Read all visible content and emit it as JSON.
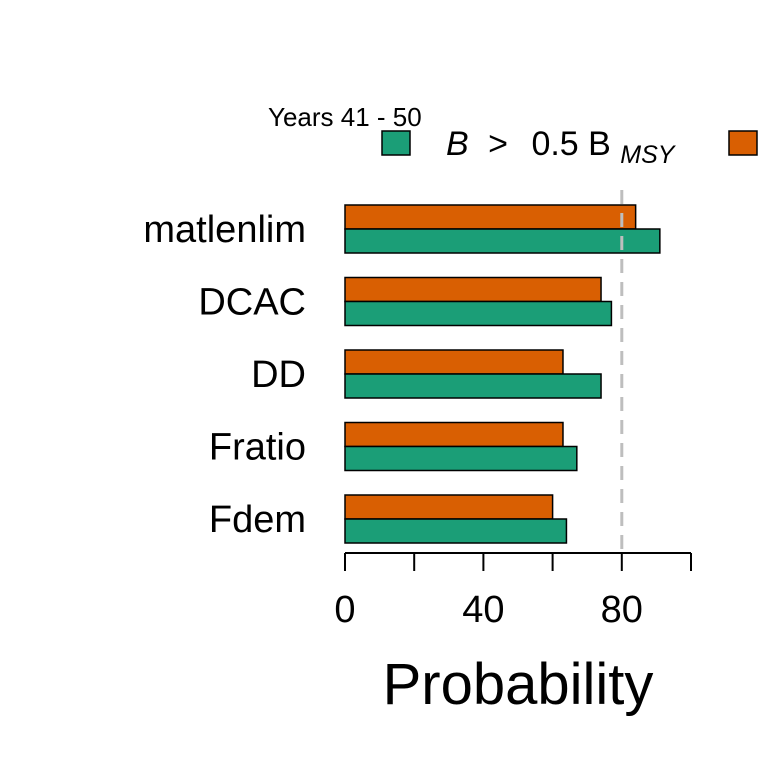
{
  "chart_data": {
    "type": "bar",
    "orientation": "horizontal",
    "title": "Years 41 - 50",
    "categories": [
      "matlenlim",
      "DCAC",
      "DD",
      "Fratio",
      "Fdem"
    ],
    "series": [
      {
        "name": "B > 0.5 B_MSY",
        "legend_parts": {
          "lhs": "B",
          "op": ">",
          "coef": "0.5 B",
          "sub": "MSY"
        },
        "color": "#1b9e77",
        "values": [
          91,
          77,
          74,
          67,
          64
        ]
      },
      {
        "name": "",
        "color": "#d95f02",
        "values": [
          84,
          74,
          63,
          63,
          60
        ]
      }
    ],
    "xlabel": "Probability",
    "xlim": [
      0,
      100
    ],
    "xticks": [
      0,
      40,
      80
    ],
    "xtick_marks": [
      0,
      20,
      40,
      60,
      80,
      100
    ],
    "reference_line": {
      "x": 80,
      "color": "#bebebe",
      "style": "dashed"
    },
    "legend_placement": "top"
  }
}
